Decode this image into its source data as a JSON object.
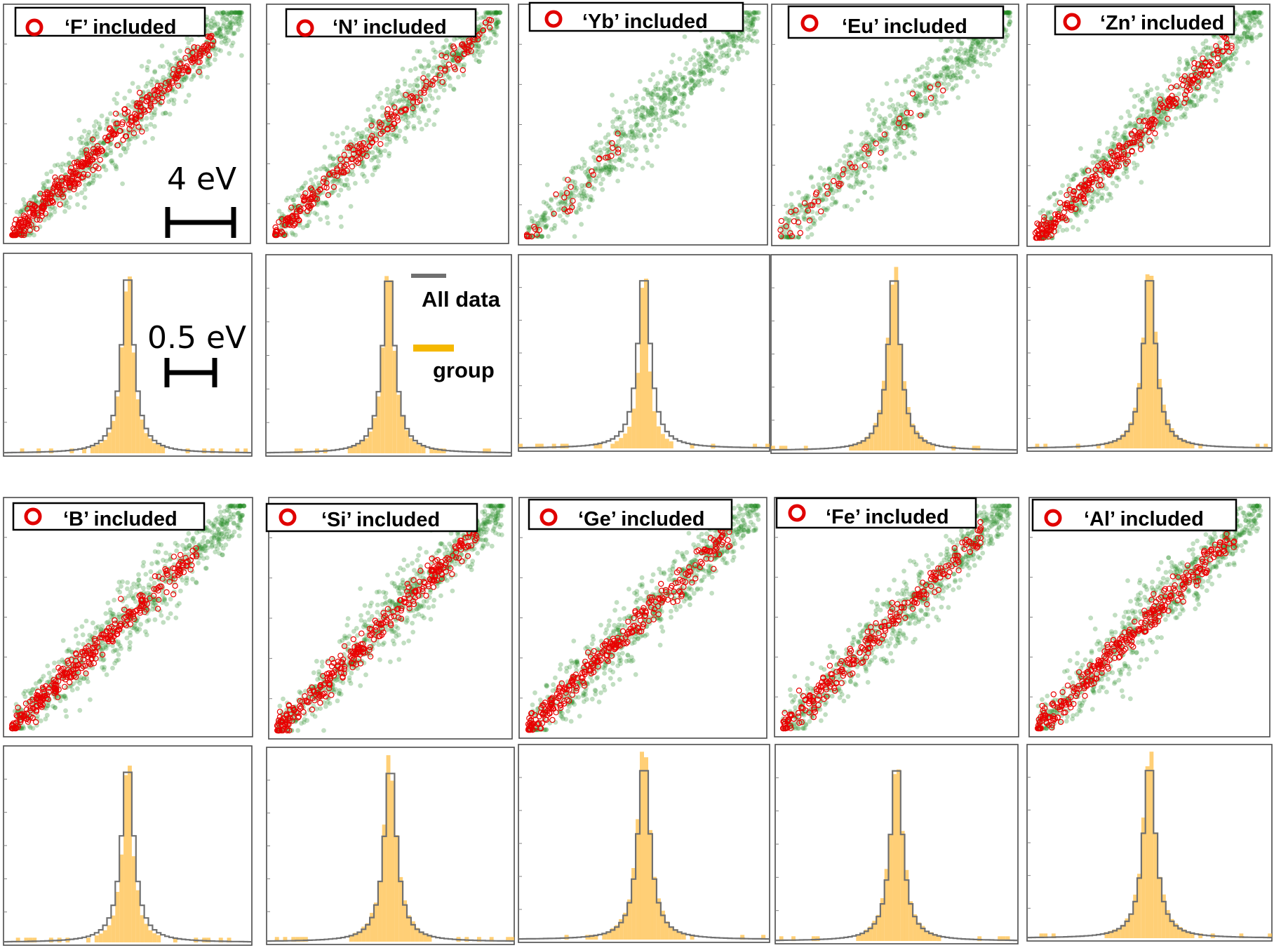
{
  "colors": {
    "all_data_points": "#1f8a1f",
    "group_points": "#e80000",
    "all_data_hist": "#707070",
    "group_hist": "#ffc250",
    "legend_group_swatch": "#f5b800"
  },
  "icons": {
    "tag_marker": "red-open-circle-icon"
  },
  "annotations": {
    "scatter_scale": "4 eV",
    "hist_scale": "0.5 eV",
    "legend_all": "All data",
    "legend_group": "group"
  },
  "chart_data": [
    {
      "type": "scatter",
      "title": "‘F’ included",
      "series": [
        {
          "name": "All data"
        },
        {
          "name": "‘F’ included"
        }
      ],
      "group_spread": 0.55,
      "group_fraction": 0.9
    },
    {
      "type": "scatter",
      "title": "‘N’ included",
      "series": [
        {
          "name": "All data"
        },
        {
          "name": "‘N’ included"
        }
      ],
      "group_spread": 0.6,
      "group_fraction": 0.55
    },
    {
      "type": "scatter",
      "title": "‘Yb’ included",
      "series": [
        {
          "name": "All data"
        },
        {
          "name": "‘Yb’ included"
        }
      ],
      "group_spread": 0.25,
      "group_fraction": 0.08
    },
    {
      "type": "scatter",
      "title": "‘Eu’ included",
      "series": [
        {
          "name": "All data"
        },
        {
          "name": "‘Eu’ included"
        }
      ],
      "group_spread": 0.45,
      "group_fraction": 0.12
    },
    {
      "type": "scatter",
      "title": "‘Zn’ included",
      "series": [
        {
          "name": "All data"
        },
        {
          "name": "‘Zn’ included"
        }
      ],
      "group_spread": 0.55,
      "group_fraction": 0.7
    },
    {
      "type": "bar",
      "title": "",
      "series": [
        {
          "name": "All data",
          "width": 0.105
        },
        {
          "name": "group",
          "width": 0.085
        }
      ]
    },
    {
      "type": "bar",
      "title": "",
      "series": [
        {
          "name": "All data",
          "width": 0.105
        },
        {
          "name": "group",
          "width": 0.09
        }
      ]
    },
    {
      "type": "bar",
      "title": "",
      "series": [
        {
          "name": "All data",
          "width": 0.105
        },
        {
          "name": "group",
          "width": 0.07
        }
      ]
    },
    {
      "type": "bar",
      "title": "",
      "series": [
        {
          "name": "All data",
          "width": 0.105
        },
        {
          "name": "group",
          "width": 0.1
        }
      ]
    },
    {
      "type": "bar",
      "title": "",
      "series": [
        {
          "name": "All data",
          "width": 0.105
        },
        {
          "name": "group",
          "width": 0.1
        }
      ]
    },
    {
      "type": "scatter",
      "title": "‘B’ included",
      "series": [
        {
          "name": "All data"
        },
        {
          "name": "‘B’ included"
        }
      ],
      "group_spread": 0.5,
      "group_fraction": 0.75
    },
    {
      "type": "scatter",
      "title": "‘Si’ included",
      "series": [
        {
          "name": "All data"
        },
        {
          "name": "‘Si’ included"
        }
      ],
      "group_spread": 0.55,
      "group_fraction": 0.75
    },
    {
      "type": "scatter",
      "title": "‘Ge’ included",
      "series": [
        {
          "name": "All data"
        },
        {
          "name": "‘Ge’ included"
        }
      ],
      "group_spread": 0.55,
      "group_fraction": 0.75
    },
    {
      "type": "scatter",
      "title": "‘Fe’ included",
      "series": [
        {
          "name": "All data"
        },
        {
          "name": "‘Fe’ included"
        }
      ],
      "group_spread": 0.55,
      "group_fraction": 0.6
    },
    {
      "type": "scatter",
      "title": "‘Al’ included",
      "series": [
        {
          "name": "All data"
        },
        {
          "name": "‘Al’ included"
        }
      ],
      "group_spread": 0.55,
      "group_fraction": 0.75
    },
    {
      "type": "bar",
      "title": "",
      "series": [
        {
          "name": "All data",
          "width": 0.105
        },
        {
          "name": "group",
          "width": 0.08
        }
      ]
    },
    {
      "type": "bar",
      "title": "",
      "series": [
        {
          "name": "All data",
          "width": 0.105
        },
        {
          "name": "group",
          "width": 0.1
        }
      ]
    },
    {
      "type": "bar",
      "title": "",
      "series": [
        {
          "name": "All data",
          "width": 0.105
        },
        {
          "name": "group",
          "width": 0.1
        }
      ]
    },
    {
      "type": "bar",
      "title": "",
      "series": [
        {
          "name": "All data",
          "width": 0.105
        },
        {
          "name": "group",
          "width": 0.1
        }
      ]
    },
    {
      "type": "bar",
      "title": "",
      "series": [
        {
          "name": "All data",
          "width": 0.105
        },
        {
          "name": "group",
          "width": 0.1
        }
      ]
    }
  ]
}
